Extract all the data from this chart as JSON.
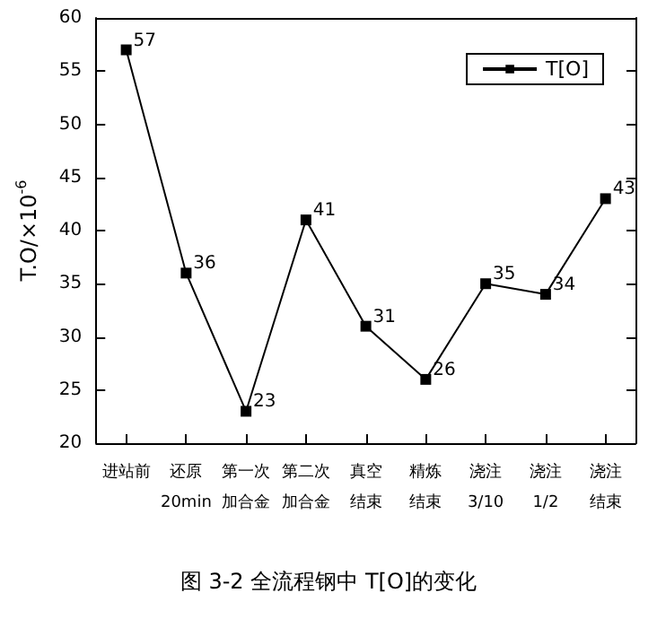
{
  "chart_data": {
    "type": "line",
    "title": "图 3-2 全流程钢中 T[O]的变化",
    "ylabel": "T.O/×10$^{-6}$",
    "categories": [
      "进站前",
      "还原20min",
      "第一次加合金",
      "第二次加合金",
      "真空结束",
      "精炼结束",
      "浇注3/10",
      "浇注1/2",
      "浇注结束"
    ],
    "series": [
      {
        "name": "T[O]",
        "color": "#000000",
        "values": [
          57,
          36,
          23,
          41,
          31,
          26,
          35,
          34,
          43
        ]
      }
    ],
    "ylim": [
      20,
      60
    ],
    "yticks": [
      20,
      25,
      30,
      35,
      40,
      45,
      50,
      55,
      60
    ],
    "data_labels": true,
    "legend": "top right",
    "marker": "square",
    "line_style": "solid",
    "grid": false
  }
}
